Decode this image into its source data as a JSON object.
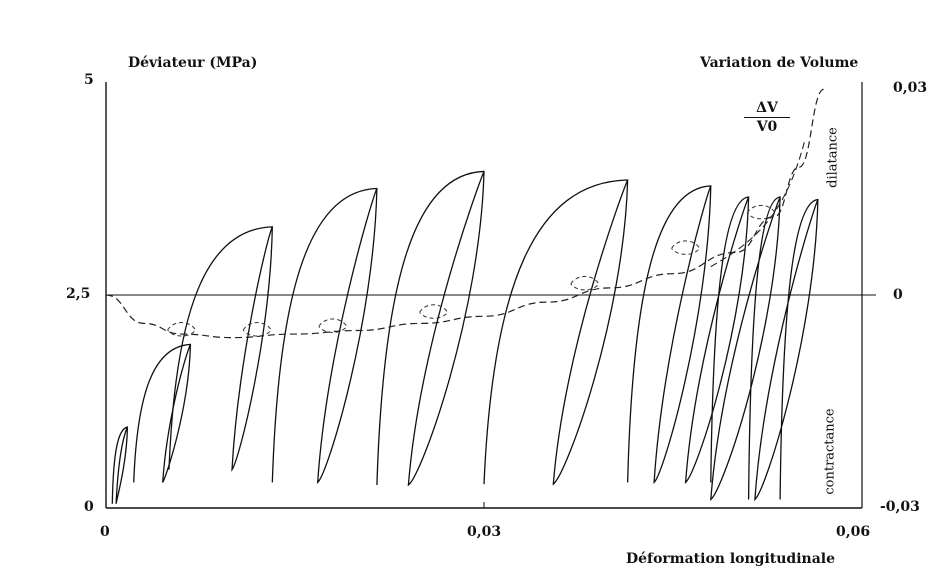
{
  "chart_data": {
    "type": "line",
    "title_left": "Déviateur (MPa)",
    "title_right": "Variation de Volume",
    "xlabel": "Déformation longitudinale",
    "x_ticks": [
      "0",
      "0,03",
      "0,06"
    ],
    "y_left_ticks": [
      "0",
      "2,5",
      "5"
    ],
    "y_right_ticks": [
      "-0,03",
      "0",
      "0,03"
    ],
    "xlim": [
      0,
      0.06
    ],
    "ylim_left": [
      0,
      5
    ],
    "ylim_right": [
      -0.03,
      0.03
    ],
    "annotations": {
      "dv_numerator": "ΔV",
      "dv_denominator": "V0",
      "dilatance": "dilatance",
      "contractance": "contractance"
    },
    "series": [
      {
        "style": "solid",
        "axis": "left",
        "cycles": [
          {
            "x_start": 0.0005,
            "x_peak": 0.0017,
            "x_min": 0.0008,
            "y_peak": 0.95,
            "y_min": 0.05
          },
          {
            "x_start": 0.0022,
            "x_peak": 0.0067,
            "x_min": 0.0045,
            "y_peak": 1.92,
            "y_min": 0.3
          },
          {
            "x_start": 0.005,
            "x_peak": 0.0132,
            "x_min": 0.01,
            "y_peak": 3.3,
            "y_min": 0.45
          },
          {
            "x_start": 0.0132,
            "x_peak": 0.0215,
            "x_min": 0.0168,
            "y_peak": 3.75,
            "y_min": 0.3
          },
          {
            "x_start": 0.0215,
            "x_peak": 0.03,
            "x_min": 0.024,
            "y_peak": 3.95,
            "y_min": 0.27
          },
          {
            "x_start": 0.03,
            "x_peak": 0.0414,
            "x_min": 0.0355,
            "y_peak": 3.85,
            "y_min": 0.28
          },
          {
            "x_start": 0.0414,
            "x_peak": 0.048,
            "x_min": 0.0435,
            "y_peak": 3.78,
            "y_min": 0.3
          },
          {
            "x_start": 0.048,
            "x_peak": 0.051,
            "x_min": 0.046,
            "y_peak": 3.65,
            "y_min": 0.3
          },
          {
            "x_start": 0.051,
            "x_peak": 0.0535,
            "x_min": 0.048,
            "y_peak": 3.65,
            "y_min": 0.1
          },
          {
            "x_start": 0.0535,
            "x_peak": 0.0565,
            "x_min": 0.0515,
            "y_peak": 3.62,
            "y_min": 0.1
          }
        ]
      },
      {
        "style": "dashed",
        "axis": "right",
        "x": [
          0.0,
          0.003,
          0.006,
          0.01,
          0.015,
          0.02,
          0.025,
          0.03,
          0.035,
          0.04,
          0.045,
          0.05,
          0.053,
          0.055,
          0.057
        ],
        "y": [
          0.0,
          -0.004,
          -0.0055,
          -0.006,
          -0.0055,
          -0.005,
          -0.004,
          -0.003,
          -0.001,
          0.001,
          0.003,
          0.006,
          0.011,
          0.018,
          0.029
        ]
      }
    ]
  }
}
